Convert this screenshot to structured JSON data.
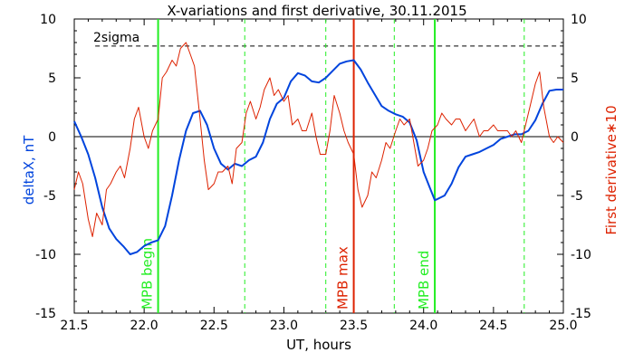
{
  "chart_data": {
    "type": "line",
    "title": "X-variations and first derivative, 30.11.2015",
    "xlabel": "UT, hours",
    "ylabel": "deltaX, nT",
    "y2label": "First derivative∗10",
    "xlim": [
      21.5,
      25.0
    ],
    "ylim": [
      -15,
      10
    ],
    "y2lim": [
      -15,
      10
    ],
    "xticks": [
      "21.5",
      "22.0",
      "22.5",
      "23.0",
      "23.5",
      "24.0",
      "24.5",
      "25.0"
    ],
    "yticks": [
      "10",
      "5",
      "0",
      "-5",
      "-10",
      "-15"
    ],
    "y2ticks": [
      "10",
      "5",
      "0",
      "-5",
      "-10",
      "-15"
    ],
    "zero_line": 0,
    "threshold": {
      "label": "2sigma",
      "value": 7.7,
      "color": "#000000"
    },
    "colors": {
      "deltaX": "#0044dd",
      "derivative": "#dd2200",
      "mpb": "#22ee22",
      "max": "#dd2200"
    },
    "vertical_lines": [
      {
        "x": 22.1,
        "label": "MPB begin",
        "style": "solid",
        "color": "#22ee22"
      },
      {
        "x": 23.5,
        "label": "MPB max",
        "style": "solid",
        "color": "#dd2200"
      },
      {
        "x": 24.08,
        "label": "MPB end",
        "style": "solid",
        "color": "#22ee22"
      },
      {
        "x": 22.72,
        "label": "",
        "style": "dashed",
        "color": "#22ee22"
      },
      {
        "x": 23.3,
        "label": "",
        "style": "dashed",
        "color": "#22ee22"
      },
      {
        "x": 23.79,
        "label": "",
        "style": "dashed",
        "color": "#22ee22"
      },
      {
        "x": 24.72,
        "label": "",
        "style": "dashed",
        "color": "#22ee22"
      }
    ],
    "series": [
      {
        "axis": "left",
        "color": "#0044dd",
        "x": [
          21.5,
          21.55,
          21.6,
          21.65,
          21.7,
          21.75,
          21.8,
          21.85,
          21.9,
          21.95,
          22.0,
          22.05,
          22.1,
          22.15,
          22.2,
          22.25,
          22.3,
          22.35,
          22.4,
          22.45,
          22.5,
          22.55,
          22.6,
          22.65,
          22.7,
          22.75,
          22.8,
          22.85,
          22.9,
          22.95,
          23.0,
          23.05,
          23.1,
          23.15,
          23.2,
          23.25,
          23.3,
          23.35,
          23.4,
          23.45,
          23.5,
          23.55,
          23.6,
          23.65,
          23.7,
          23.75,
          23.8,
          23.85,
          23.9,
          23.95,
          24.0,
          24.05,
          24.08,
          24.1,
          24.15,
          24.2,
          24.25,
          24.3,
          24.35,
          24.4,
          24.45,
          24.5,
          24.55,
          24.6,
          24.65,
          24.7,
          24.75,
          24.8,
          24.85,
          24.9,
          24.95,
          25.0
        ],
        "values": [
          1.3,
          0.0,
          -1.5,
          -3.5,
          -6.0,
          -7.8,
          -8.7,
          -9.3,
          -10.0,
          -9.8,
          -9.3,
          -9.0,
          -8.8,
          -7.6,
          -5.0,
          -2.0,
          0.5,
          2.0,
          2.2,
          1.0,
          -1.0,
          -2.3,
          -2.8,
          -2.3,
          -2.5,
          -2.0,
          -1.7,
          -0.5,
          1.5,
          2.8,
          3.3,
          4.7,
          5.4,
          5.2,
          4.7,
          4.6,
          5.0,
          5.6,
          6.2,
          6.4,
          6.5,
          5.7,
          4.6,
          3.6,
          2.6,
          2.2,
          1.9,
          1.7,
          1.2,
          -0.3,
          -3.0,
          -4.5,
          -5.4,
          -5.3,
          -5.0,
          -4.0,
          -2.6,
          -1.7,
          -1.5,
          -1.3,
          -1.0,
          -0.7,
          -0.2,
          0.0,
          0.2,
          0.2,
          0.5,
          1.4,
          2.8,
          3.9,
          4.0,
          4.0
        ]
      },
      {
        "axis": "right",
        "color": "#dd2200",
        "x": [
          21.5,
          21.53,
          21.56,
          21.6,
          21.63,
          21.66,
          21.7,
          21.73,
          21.76,
          21.8,
          21.83,
          21.86,
          21.9,
          21.93,
          21.96,
          22.0,
          22.03,
          22.06,
          22.1,
          22.13,
          22.16,
          22.2,
          22.23,
          22.26,
          22.3,
          22.33,
          22.36,
          22.4,
          22.43,
          22.46,
          22.5,
          22.53,
          22.56,
          22.6,
          22.63,
          22.66,
          22.7,
          22.73,
          22.76,
          22.8,
          22.83,
          22.86,
          22.9,
          22.93,
          22.96,
          23.0,
          23.03,
          23.06,
          23.1,
          23.13,
          23.16,
          23.2,
          23.23,
          23.26,
          23.3,
          23.33,
          23.36,
          23.4,
          23.43,
          23.46,
          23.5,
          23.53,
          23.56,
          23.6,
          23.63,
          23.66,
          23.7,
          23.73,
          23.76,
          23.8,
          23.83,
          23.86,
          23.9,
          23.93,
          23.96,
          24.0,
          24.03,
          24.06,
          24.1,
          24.13,
          24.16,
          24.2,
          24.23,
          24.26,
          24.3,
          24.33,
          24.36,
          24.4,
          24.43,
          24.46,
          24.5,
          24.53,
          24.56,
          24.6,
          24.63,
          24.66,
          24.7,
          24.73,
          24.76,
          24.8,
          24.83,
          24.86,
          24.9,
          24.93,
          24.96,
          25.0
        ],
        "values": [
          -4.5,
          -3.0,
          -4.0,
          -7.0,
          -8.5,
          -6.5,
          -7.5,
          -4.5,
          -4.0,
          -3.0,
          -2.5,
          -3.5,
          -1.0,
          1.5,
          2.5,
          0.0,
          -1.0,
          0.5,
          1.5,
          5.0,
          5.5,
          6.5,
          6.0,
          7.5,
          8.0,
          7.0,
          6.0,
          1.5,
          -2.0,
          -4.5,
          -4.0,
          -3.0,
          -3.0,
          -2.5,
          -4.0,
          -1.0,
          -0.5,
          2.0,
          3.0,
          1.5,
          2.5,
          4.0,
          5.0,
          3.5,
          4.0,
          3.0,
          3.5,
          1.0,
          1.5,
          0.5,
          0.5,
          2.0,
          0.0,
          -1.5,
          -1.5,
          0.5,
          3.5,
          2.0,
          0.5,
          -0.5,
          -1.5,
          -4.5,
          -6.0,
          -5.0,
          -3.0,
          -3.5,
          -2.0,
          -0.5,
          -1.0,
          0.5,
          1.5,
          1.0,
          1.5,
          -0.5,
          -2.5,
          -2.0,
          -1.0,
          0.5,
          1.0,
          2.0,
          1.5,
          1.0,
          1.5,
          1.5,
          0.5,
          1.0,
          1.5,
          0.0,
          0.5,
          0.5,
          1.0,
          0.5,
          0.5,
          0.5,
          0.0,
          0.5,
          -0.5,
          1.0,
          2.5,
          4.5,
          5.5,
          2.5,
          0.0,
          -0.5,
          0.0,
          -0.5
        ]
      }
    ]
  }
}
